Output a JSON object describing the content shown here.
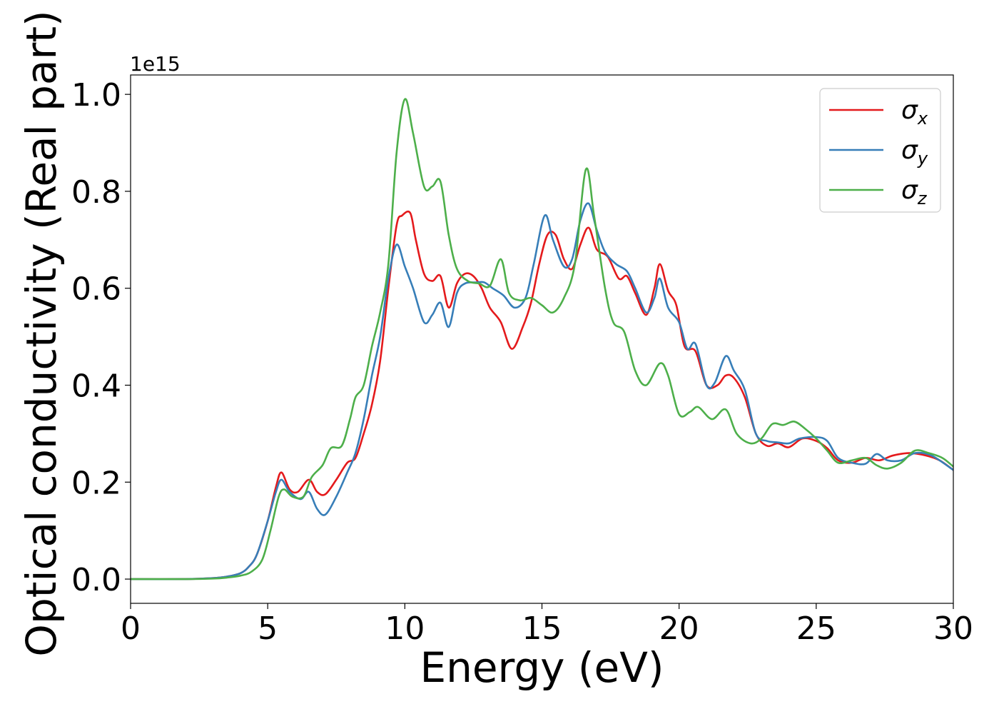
{
  "chart_data": {
    "type": "line",
    "xlabel": "Energy (eV)",
    "ylabel": "Optical conductivity (Real part)",
    "y_offset_label": "1e15",
    "xlim": [
      0,
      30
    ],
    "ylim": [
      -0.05,
      1.04
    ],
    "x_ticks": [
      0,
      5,
      10,
      15,
      20,
      25,
      30
    ],
    "x_tick_labels": [
      "0",
      "5",
      "10",
      "15",
      "20",
      "25",
      "30"
    ],
    "y_ticks": [
      0.0,
      0.2,
      0.4,
      0.6,
      0.8,
      1.0
    ],
    "y_tick_labels": [
      "0.0",
      "0.2",
      "0.4",
      "0.6",
      "0.8",
      "1.0"
    ],
    "grid": false,
    "legend_position": "top-right",
    "series": [
      {
        "name": "σ_x",
        "legend_symbol": "σ",
        "legend_subscript": "x",
        "color": "#e41a1c",
        "points": [
          [
            0,
            0
          ],
          [
            2,
            0
          ],
          [
            3,
            0.002
          ],
          [
            3.5,
            0.005
          ],
          [
            4,
            0.012
          ],
          [
            4.3,
            0.025
          ],
          [
            4.6,
            0.05
          ],
          [
            5,
            0.12
          ],
          [
            5.3,
            0.19
          ],
          [
            5.5,
            0.22
          ],
          [
            5.8,
            0.185
          ],
          [
            6.1,
            0.18
          ],
          [
            6.5,
            0.205
          ],
          [
            6.8,
            0.18
          ],
          [
            7.1,
            0.175
          ],
          [
            7.5,
            0.205
          ],
          [
            7.9,
            0.24
          ],
          [
            8.2,
            0.25
          ],
          [
            8.5,
            0.3
          ],
          [
            8.8,
            0.36
          ],
          [
            9.1,
            0.45
          ],
          [
            9.4,
            0.6
          ],
          [
            9.7,
            0.73
          ],
          [
            9.9,
            0.75
          ],
          [
            10.2,
            0.755
          ],
          [
            10.4,
            0.7
          ],
          [
            10.7,
            0.63
          ],
          [
            11,
            0.615
          ],
          [
            11.3,
            0.625
          ],
          [
            11.6,
            0.56
          ],
          [
            11.9,
            0.61
          ],
          [
            12.2,
            0.63
          ],
          [
            12.5,
            0.625
          ],
          [
            12.8,
            0.6
          ],
          [
            13.1,
            0.56
          ],
          [
            13.5,
            0.53
          ],
          [
            13.9,
            0.475
          ],
          [
            14.3,
            0.52
          ],
          [
            14.6,
            0.57
          ],
          [
            14.9,
            0.65
          ],
          [
            15.2,
            0.71
          ],
          [
            15.5,
            0.71
          ],
          [
            15.8,
            0.66
          ],
          [
            16.1,
            0.64
          ],
          [
            16.4,
            0.69
          ],
          [
            16.7,
            0.725
          ],
          [
            17,
            0.68
          ],
          [
            17.4,
            0.665
          ],
          [
            17.8,
            0.62
          ],
          [
            18.1,
            0.625
          ],
          [
            18.4,
            0.59
          ],
          [
            18.8,
            0.545
          ],
          [
            19.1,
            0.6
          ],
          [
            19.3,
            0.65
          ],
          [
            19.6,
            0.595
          ],
          [
            19.9,
            0.565
          ],
          [
            20.2,
            0.48
          ],
          [
            20.6,
            0.47
          ],
          [
            21,
            0.4
          ],
          [
            21.4,
            0.4
          ],
          [
            21.7,
            0.42
          ],
          [
            22,
            0.415
          ],
          [
            22.4,
            0.375
          ],
          [
            22.8,
            0.3
          ],
          [
            23.2,
            0.275
          ],
          [
            23.6,
            0.28
          ],
          [
            24,
            0.272
          ],
          [
            24.5,
            0.29
          ],
          [
            25,
            0.285
          ],
          [
            25.4,
            0.27
          ],
          [
            25.8,
            0.245
          ],
          [
            26.3,
            0.24
          ],
          [
            26.8,
            0.25
          ],
          [
            27.3,
            0.245
          ],
          [
            27.8,
            0.255
          ],
          [
            28.4,
            0.26
          ],
          [
            29,
            0.255
          ],
          [
            29.5,
            0.245
          ],
          [
            30,
            0.225
          ]
        ]
      },
      {
        "name": "σ_y",
        "legend_symbol": "σ",
        "legend_subscript": "y",
        "color": "#377eb8",
        "points": [
          [
            0,
            0
          ],
          [
            2,
            0
          ],
          [
            3,
            0.002
          ],
          [
            3.5,
            0.005
          ],
          [
            4,
            0.012
          ],
          [
            4.3,
            0.025
          ],
          [
            4.6,
            0.05
          ],
          [
            5,
            0.12
          ],
          [
            5.3,
            0.18
          ],
          [
            5.5,
            0.205
          ],
          [
            5.8,
            0.18
          ],
          [
            6.2,
            0.165
          ],
          [
            6.5,
            0.18
          ],
          [
            6.8,
            0.145
          ],
          [
            7.1,
            0.133
          ],
          [
            7.5,
            0.17
          ],
          [
            7.9,
            0.22
          ],
          [
            8.2,
            0.26
          ],
          [
            8.5,
            0.33
          ],
          [
            8.8,
            0.42
          ],
          [
            9.1,
            0.5
          ],
          [
            9.4,
            0.62
          ],
          [
            9.7,
            0.69
          ],
          [
            10,
            0.645
          ],
          [
            10.3,
            0.6
          ],
          [
            10.7,
            0.53
          ],
          [
            11,
            0.545
          ],
          [
            11.3,
            0.57
          ],
          [
            11.6,
            0.52
          ],
          [
            11.9,
            0.59
          ],
          [
            12.2,
            0.61
          ],
          [
            12.6,
            0.612
          ],
          [
            12.9,
            0.612
          ],
          [
            13.2,
            0.6
          ],
          [
            13.6,
            0.585
          ],
          [
            14,
            0.56
          ],
          [
            14.4,
            0.58
          ],
          [
            14.7,
            0.65
          ],
          [
            15.1,
            0.75
          ],
          [
            15.4,
            0.7
          ],
          [
            15.8,
            0.645
          ],
          [
            16.1,
            0.66
          ],
          [
            16.4,
            0.74
          ],
          [
            16.7,
            0.775
          ],
          [
            17,
            0.72
          ],
          [
            17.3,
            0.675
          ],
          [
            17.7,
            0.65
          ],
          [
            18.1,
            0.635
          ],
          [
            18.4,
            0.6
          ],
          [
            18.8,
            0.55
          ],
          [
            19.1,
            0.58
          ],
          [
            19.3,
            0.62
          ],
          [
            19.6,
            0.56
          ],
          [
            20,
            0.53
          ],
          [
            20.3,
            0.475
          ],
          [
            20.6,
            0.485
          ],
          [
            21,
            0.4
          ],
          [
            21.3,
            0.405
          ],
          [
            21.7,
            0.46
          ],
          [
            22,
            0.43
          ],
          [
            22.4,
            0.39
          ],
          [
            22.8,
            0.3
          ],
          [
            23.2,
            0.285
          ],
          [
            23.6,
            0.282
          ],
          [
            24,
            0.28
          ],
          [
            24.4,
            0.29
          ],
          [
            25,
            0.293
          ],
          [
            25.4,
            0.285
          ],
          [
            25.8,
            0.25
          ],
          [
            26.3,
            0.24
          ],
          [
            26.8,
            0.238
          ],
          [
            27.2,
            0.258
          ],
          [
            27.6,
            0.245
          ],
          [
            28.1,
            0.245
          ],
          [
            28.6,
            0.26
          ],
          [
            29.2,
            0.255
          ],
          [
            30,
            0.225
          ]
        ]
      },
      {
        "name": "σ_z",
        "legend_symbol": "σ",
        "legend_subscript": "z",
        "color": "#4daf4a",
        "points": [
          [
            0,
            0
          ],
          [
            2,
            0
          ],
          [
            3,
            0.001
          ],
          [
            3.5,
            0.003
          ],
          [
            4,
            0.007
          ],
          [
            4.4,
            0.015
          ],
          [
            4.8,
            0.04
          ],
          [
            5.1,
            0.1
          ],
          [
            5.4,
            0.17
          ],
          [
            5.6,
            0.185
          ],
          [
            5.9,
            0.17
          ],
          [
            6.3,
            0.17
          ],
          [
            6.6,
            0.21
          ],
          [
            7,
            0.235
          ],
          [
            7.3,
            0.27
          ],
          [
            7.7,
            0.275
          ],
          [
            8,
            0.33
          ],
          [
            8.2,
            0.375
          ],
          [
            8.5,
            0.4
          ],
          [
            8.8,
            0.48
          ],
          [
            9.1,
            0.55
          ],
          [
            9.4,
            0.65
          ],
          [
            9.7,
            0.88
          ],
          [
            10,
            0.99
          ],
          [
            10.3,
            0.92
          ],
          [
            10.7,
            0.81
          ],
          [
            11,
            0.81
          ],
          [
            11.3,
            0.82
          ],
          [
            11.6,
            0.71
          ],
          [
            11.9,
            0.64
          ],
          [
            12.3,
            0.615
          ],
          [
            12.7,
            0.61
          ],
          [
            13.1,
            0.605
          ],
          [
            13.5,
            0.66
          ],
          [
            13.8,
            0.59
          ],
          [
            14.2,
            0.575
          ],
          [
            14.6,
            0.58
          ],
          [
            15,
            0.565
          ],
          [
            15.4,
            0.55
          ],
          [
            15.8,
            0.58
          ],
          [
            16.2,
            0.65
          ],
          [
            16.6,
            0.845
          ],
          [
            16.9,
            0.75
          ],
          [
            17.3,
            0.6
          ],
          [
            17.6,
            0.53
          ],
          [
            18,
            0.51
          ],
          [
            18.4,
            0.43
          ],
          [
            18.8,
            0.4
          ],
          [
            19.3,
            0.445
          ],
          [
            19.6,
            0.42
          ],
          [
            20,
            0.34
          ],
          [
            20.4,
            0.345
          ],
          [
            20.7,
            0.355
          ],
          [
            21.2,
            0.33
          ],
          [
            21.7,
            0.35
          ],
          [
            22.1,
            0.3
          ],
          [
            22.6,
            0.28
          ],
          [
            23,
            0.29
          ],
          [
            23.4,
            0.32
          ],
          [
            23.8,
            0.318
          ],
          [
            24.2,
            0.325
          ],
          [
            24.6,
            0.31
          ],
          [
            25,
            0.29
          ],
          [
            25.4,
            0.265
          ],
          [
            25.8,
            0.24
          ],
          [
            26.3,
            0.245
          ],
          [
            26.8,
            0.25
          ],
          [
            27.2,
            0.235
          ],
          [
            27.6,
            0.228
          ],
          [
            28.1,
            0.24
          ],
          [
            28.6,
            0.265
          ],
          [
            29.1,
            0.26
          ],
          [
            29.6,
            0.25
          ],
          [
            30,
            0.232
          ]
        ]
      }
    ]
  }
}
